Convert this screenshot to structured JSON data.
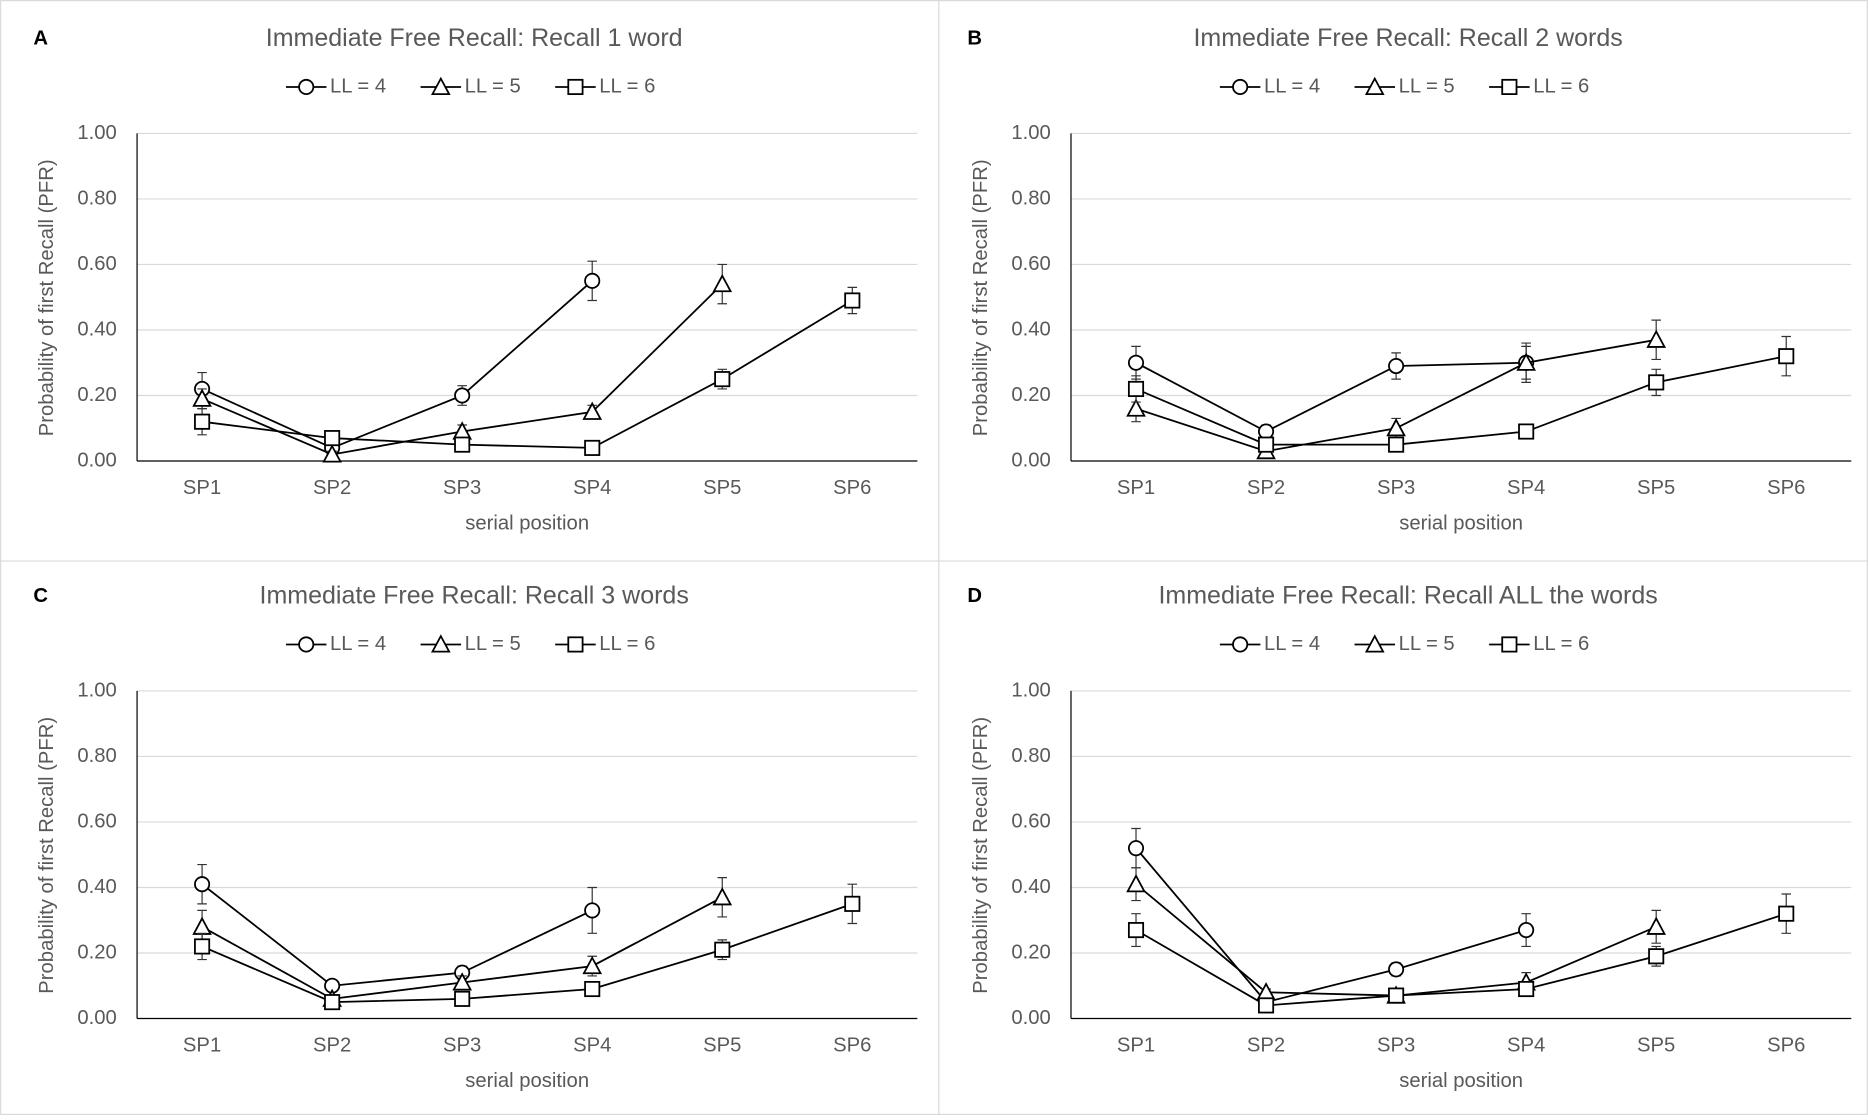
{
  "chart_data": [
    {
      "type": "line",
      "label": "A",
      "title": "Immediate Free Recall: Recall 1 word",
      "xlabel": "serial position",
      "ylabel": "Probability of first Recall (PFR)",
      "categories": [
        "SP1",
        "SP2",
        "SP3",
        "SP4",
        "SP5",
        "SP6"
      ],
      "ylim": [
        0,
        1
      ],
      "yticks": [
        {
          "value": 0,
          "label": "0.00"
        },
        {
          "value": 0.2,
          "label": "0.20"
        },
        {
          "value": 0.4,
          "label": "0.40"
        },
        {
          "value": 0.6,
          "label": "0.60"
        },
        {
          "value": 0.8,
          "label": "0.80"
        },
        {
          "value": 1,
          "label": "1.00"
        }
      ],
      "grid": true,
      "series": [
        {
          "name": "LL = 4",
          "color": "#000000",
          "marker": "circle",
          "values": [
            0.22,
            0.04,
            0.2,
            0.55,
            null,
            null
          ],
          "errors": [
            0.05,
            0.01,
            0.03,
            0.06,
            null,
            null
          ]
        },
        {
          "name": "LL = 5",
          "color": "#000000",
          "marker": "triangle",
          "values": [
            0.19,
            0.02,
            0.09,
            0.15,
            0.54,
            null
          ],
          "errors": [
            0.03,
            0.01,
            0.02,
            0.02,
            0.06,
            null
          ]
        },
        {
          "name": "LL = 6",
          "color": "#000000",
          "marker": "square",
          "values": [
            0.12,
            0.07,
            0.05,
            0.04,
            0.25,
            0.49
          ],
          "errors": [
            0.04,
            0.01,
            0.01,
            0.01,
            0.03,
            0.04
          ]
        }
      ]
    },
    {
      "type": "line",
      "label": "B",
      "title": "Immediate Free Recall: Recall 2 words",
      "xlabel": "serial position",
      "ylabel": "Probability of first Recall (PFR)",
      "categories": [
        "SP1",
        "SP2",
        "SP3",
        "SP4",
        "SP5",
        "SP6"
      ],
      "ylim": [
        0,
        1
      ],
      "yticks": [
        {
          "value": 0,
          "label": "0.00"
        },
        {
          "value": 0.2,
          "label": "0.20"
        },
        {
          "value": 0.4,
          "label": "0.40"
        },
        {
          "value": 0.6,
          "label": "0.60"
        },
        {
          "value": 0.8,
          "label": "0.80"
        },
        {
          "value": 1,
          "label": "1.00"
        }
      ],
      "grid": true,
      "series": [
        {
          "name": "LL = 4",
          "color": "#000000",
          "marker": "circle",
          "values": [
            0.3,
            0.09,
            0.29,
            0.3,
            null,
            null
          ],
          "errors": [
            0.05,
            0.02,
            0.04,
            0.05,
            null,
            null
          ]
        },
        {
          "name": "LL = 5",
          "color": "#000000",
          "marker": "triangle",
          "values": [
            0.16,
            0.03,
            0.1,
            0.3,
            0.37,
            null
          ],
          "errors": [
            0.04,
            0.01,
            0.03,
            0.06,
            0.06,
            null
          ]
        },
        {
          "name": "LL = 6",
          "color": "#000000",
          "marker": "square",
          "values": [
            0.22,
            0.05,
            0.05,
            0.09,
            0.24,
            0.32
          ],
          "errors": [
            0.04,
            0.01,
            0.01,
            0.01,
            0.04,
            0.06
          ]
        }
      ]
    },
    {
      "type": "line",
      "label": "C",
      "title": "Immediate Free Recall: Recall 3 words",
      "xlabel": "serial position",
      "ylabel": "Probability of first Recall (PFR)",
      "categories": [
        "SP1",
        "SP2",
        "SP3",
        "SP4",
        "SP5",
        "SP6"
      ],
      "ylim": [
        0,
        1
      ],
      "yticks": [
        {
          "value": 0,
          "label": "0.00"
        },
        {
          "value": 0.2,
          "label": "0.20"
        },
        {
          "value": 0.4,
          "label": "0.40"
        },
        {
          "value": 0.6,
          "label": "0.60"
        },
        {
          "value": 0.8,
          "label": "0.80"
        },
        {
          "value": 1,
          "label": "1.00"
        }
      ],
      "grid": true,
      "series": [
        {
          "name": "LL = 4",
          "color": "#000000",
          "marker": "circle",
          "values": [
            0.41,
            0.1,
            0.14,
            0.33,
            null,
            null
          ],
          "errors": [
            0.06,
            0.01,
            0.02,
            0.07,
            null,
            null
          ]
        },
        {
          "name": "LL = 5",
          "color": "#000000",
          "marker": "triangle",
          "values": [
            0.28,
            0.06,
            0.11,
            0.16,
            0.37,
            null
          ],
          "errors": [
            0.05,
            0.01,
            0.02,
            0.03,
            0.06,
            null
          ]
        },
        {
          "name": "LL = 6",
          "color": "#000000",
          "marker": "square",
          "values": [
            0.22,
            0.05,
            0.06,
            0.09,
            0.21,
            0.35
          ],
          "errors": [
            0.04,
            0.01,
            0.01,
            0.01,
            0.03,
            0.06
          ]
        }
      ]
    },
    {
      "type": "line",
      "label": "D",
      "title": "Immediate Free Recall: Recall ALL the words",
      "xlabel": "serial position",
      "ylabel": "Probability of first Recall (PFR)",
      "categories": [
        "SP1",
        "SP2",
        "SP3",
        "SP4",
        "SP5",
        "SP6"
      ],
      "ylim": [
        0,
        1
      ],
      "yticks": [
        {
          "value": 0,
          "label": "0.00"
        },
        {
          "value": 0.2,
          "label": "0.20"
        },
        {
          "value": 0.4,
          "label": "0.40"
        },
        {
          "value": 0.6,
          "label": "0.60"
        },
        {
          "value": 0.8,
          "label": "0.80"
        },
        {
          "value": 1,
          "label": "1.00"
        }
      ],
      "grid": true,
      "series": [
        {
          "name": "LL = 4",
          "color": "#000000",
          "marker": "circle",
          "values": [
            0.52,
            0.05,
            0.15,
            0.27,
            null,
            null
          ],
          "errors": [
            0.06,
            0.01,
            0.02,
            0.05,
            null,
            null
          ]
        },
        {
          "name": "LL = 5",
          "color": "#000000",
          "marker": "triangle",
          "values": [
            0.41,
            0.08,
            0.07,
            0.11,
            0.28,
            null
          ],
          "errors": [
            0.05,
            0.01,
            0.01,
            0.03,
            0.05,
            null
          ]
        },
        {
          "name": "LL = 6",
          "color": "#000000",
          "marker": "square",
          "values": [
            0.27,
            0.04,
            0.07,
            0.09,
            0.19,
            0.32
          ],
          "errors": [
            0.05,
            0.01,
            0.01,
            0.02,
            0.03,
            0.06
          ]
        }
      ]
    }
  ]
}
